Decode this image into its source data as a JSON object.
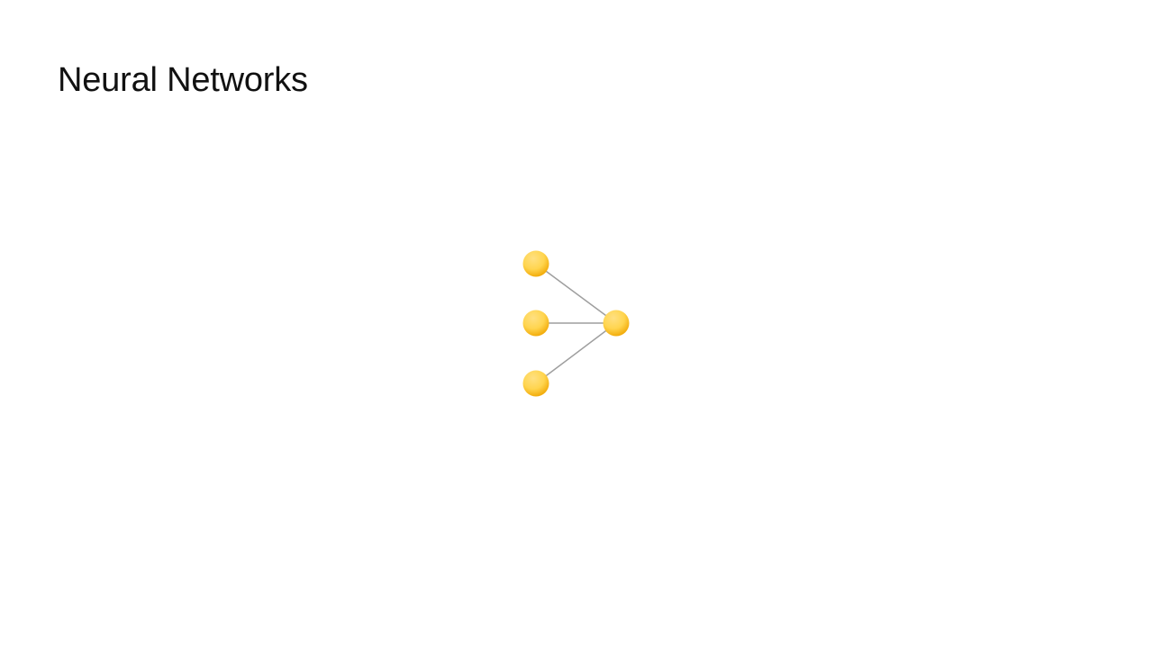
{
  "slide": {
    "title": "Neural Networks"
  },
  "diagram": {
    "node_color_light": "#FFD54F",
    "node_color_dark": "#F0A500",
    "edge_color": "#9E9E9E",
    "input_nodes": [
      "input-node-1",
      "input-node-2",
      "input-node-3"
    ],
    "output_nodes": [
      "output-node"
    ]
  }
}
